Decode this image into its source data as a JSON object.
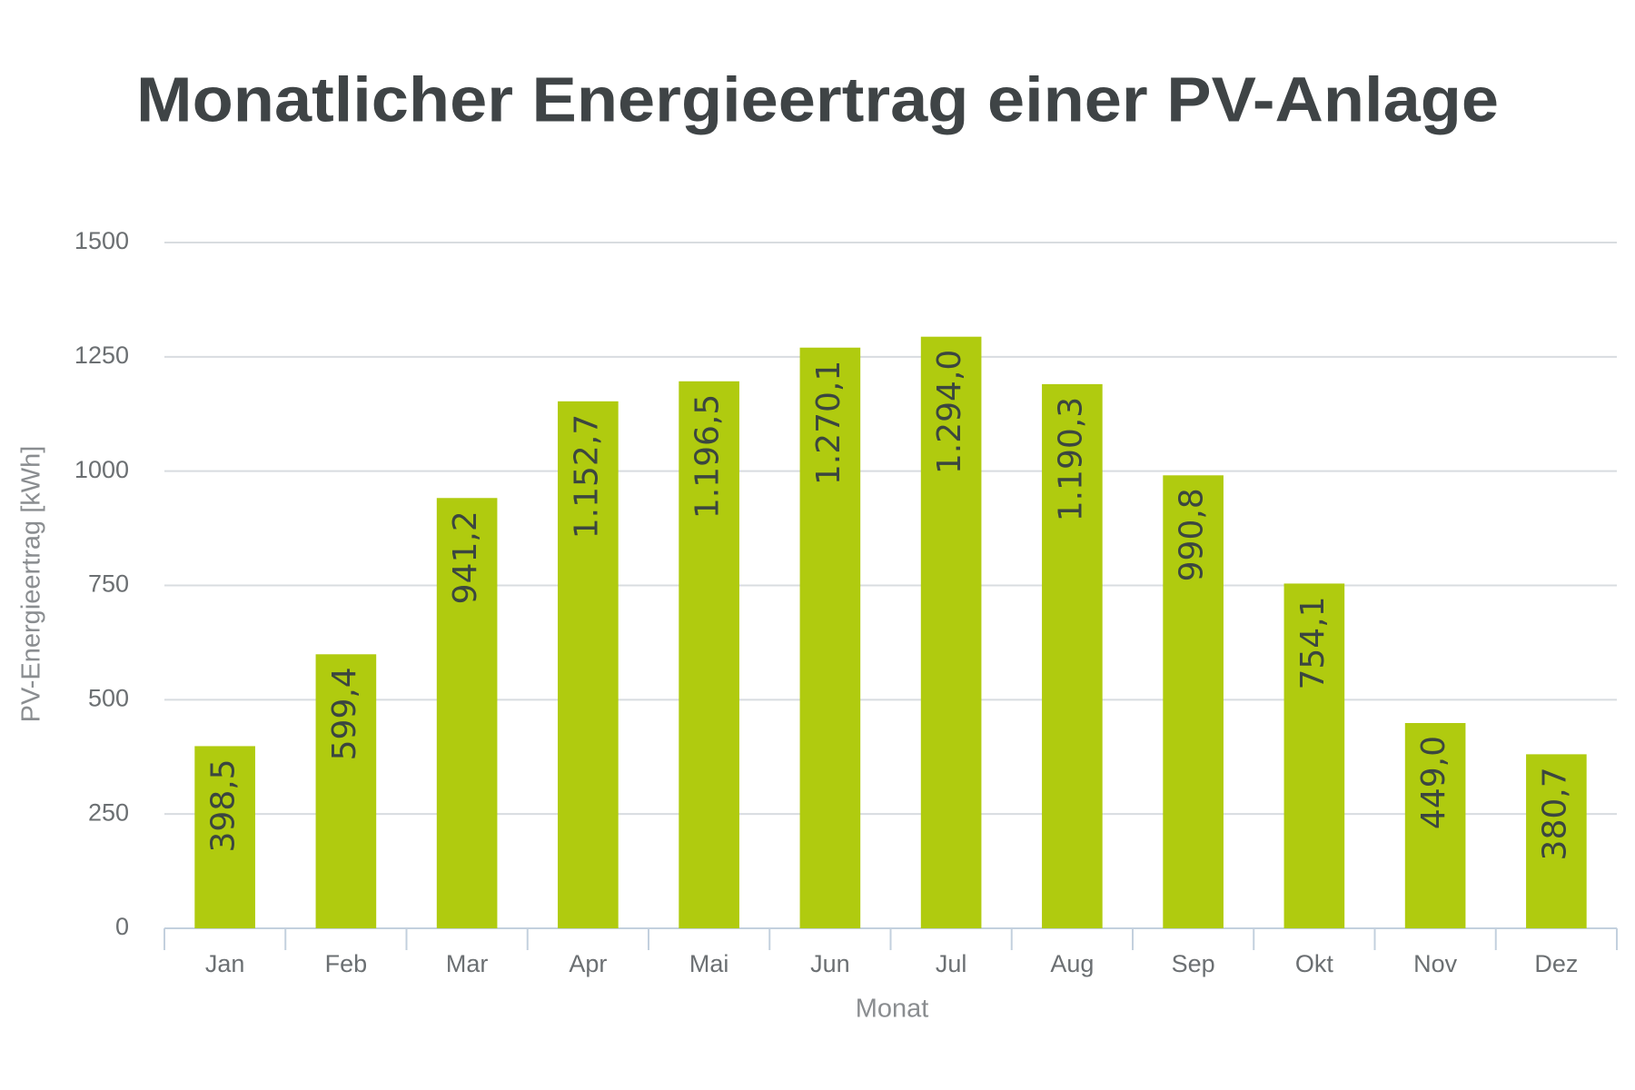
{
  "chart_data": {
    "type": "bar",
    "title": "Monatlicher Energieertrag einer PV-Anlage",
    "x_label": "Monat",
    "y_label": "PV-Energieertrag [kWh]",
    "categories": [
      "Jan",
      "Feb",
      "Mar",
      "Apr",
      "Mai",
      "Jun",
      "Jul",
      "Aug",
      "Sep",
      "Okt",
      "Nov",
      "Dez"
    ],
    "values": [
      398.5,
      599.4,
      941.2,
      1152.7,
      1196.5,
      1270.1,
      1294.0,
      1190.3,
      990.8,
      754.1,
      449.0,
      380.7
    ],
    "value_labels": [
      "398,5",
      "599,4",
      "941,2",
      "1.152,7",
      "1.196,5",
      "1.270,1",
      "1.294,0",
      "1.190,3",
      "990,8",
      "754,1",
      "449,0",
      "380,7"
    ],
    "color": "#b0cb0f",
    "ylim": [
      0,
      1500
    ],
    "yticks": [
      0,
      250,
      500,
      750,
      1000,
      1250,
      1500
    ],
    "grid": true
  }
}
